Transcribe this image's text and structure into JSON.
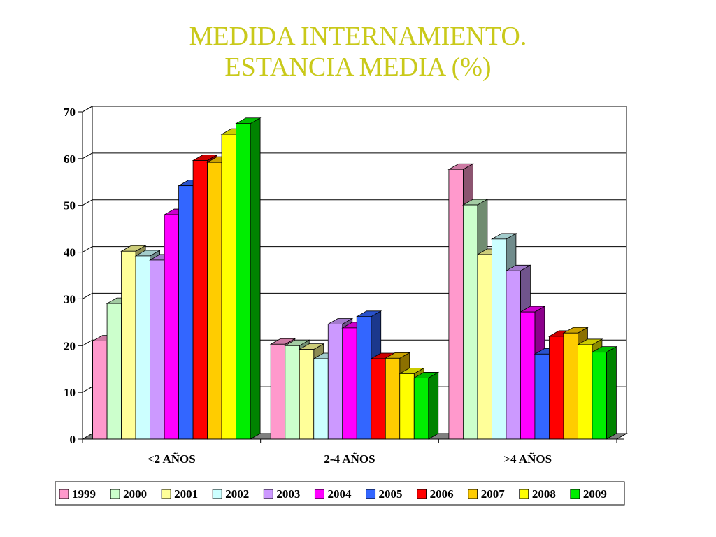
{
  "title": {
    "line1": "MEDIDA INTERNAMIENTO.",
    "line2": "ESTANCIA MEDIA (%)"
  },
  "colors": {
    "title": "#c9c91a",
    "gridline": "#000000",
    "floor": "#808080"
  },
  "chart_data": {
    "type": "bar",
    "title": "MEDIDA INTERNAMIENTO. ESTANCIA MEDIA (%)",
    "xlabel": "",
    "ylabel": "",
    "ylim": [
      0,
      70
    ],
    "yticks": [
      0,
      10,
      20,
      30,
      40,
      50,
      60,
      70
    ],
    "grid": true,
    "legend": "bottom",
    "style": "3d-clustered-column",
    "categories": [
      "<2 AÑOS",
      "2-4 AÑOS",
      ">4 AÑOS"
    ],
    "series": [
      {
        "name": "1999",
        "color": "#ff99cc",
        "values": [
          21,
          20.3,
          57.7
        ]
      },
      {
        "name": "2000",
        "color": "#ccffcc",
        "values": [
          29,
          20,
          50.1
        ]
      },
      {
        "name": "2001",
        "color": "#ffff99",
        "values": [
          40.2,
          19.2,
          39.5
        ]
      },
      {
        "name": "2002",
        "color": "#ccffff",
        "values": [
          39.2,
          17.2,
          42.8
        ]
      },
      {
        "name": "2003",
        "color": "#cc99ff",
        "values": [
          38.3,
          24.6,
          36
        ]
      },
      {
        "name": "2004",
        "color": "#ff00ff",
        "values": [
          48,
          23.8,
          27.2
        ]
      },
      {
        "name": "2005",
        "color": "#3366ff",
        "values": [
          54.2,
          26.2,
          18.2
        ]
      },
      {
        "name": "2006",
        "color": "#ff0000",
        "values": [
          59.6,
          17.2,
          22
        ]
      },
      {
        "name": "2007",
        "color": "#ffcc00",
        "values": [
          59.2,
          17.3,
          22.7
        ]
      },
      {
        "name": "2008",
        "color": "#ffff00",
        "values": [
          65.2,
          14,
          20.2
        ]
      },
      {
        "name": "2009",
        "color": "#00ee00",
        "values": [
          67.5,
          13.1,
          18.6
        ]
      }
    ]
  }
}
